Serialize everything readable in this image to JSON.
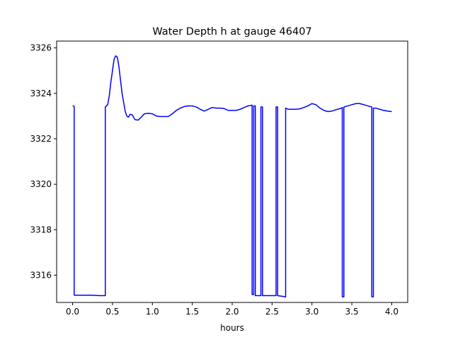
{
  "chart_data": {
    "type": "line",
    "title": "Water Depth h at gauge 46407",
    "xlabel": "hours",
    "ylabel": "",
    "xlim": [
      -0.2,
      4.2
    ],
    "ylim": [
      3314.8,
      3326.3
    ],
    "xticks": [
      0.0,
      0.5,
      1.0,
      1.5,
      2.0,
      2.5,
      3.0,
      3.5,
      4.0
    ],
    "xtick_labels": [
      "0.0",
      "0.5",
      "1.0",
      "1.5",
      "2.0",
      "2.5",
      "3.0",
      "3.5",
      "4.0"
    ],
    "yticks": [
      3316,
      3318,
      3320,
      3322,
      3324,
      3326
    ],
    "ytick_labels": [
      "3316",
      "3318",
      "3320",
      "3322",
      "3324",
      "3326"
    ],
    "grid": false,
    "series": [
      {
        "name": "",
        "color": "#0000ff",
        "x": [
          0.0,
          0.02,
          0.02,
          0.1,
          0.25,
          0.33,
          0.41,
          0.41,
          0.44,
          0.46,
          0.48,
          0.5,
          0.52,
          0.54,
          0.56,
          0.58,
          0.6,
          0.62,
          0.64,
          0.66,
          0.68,
          0.7,
          0.72,
          0.75,
          0.78,
          0.82,
          0.86,
          0.9,
          0.95,
          1.0,
          1.05,
          1.1,
          1.15,
          1.2,
          1.25,
          1.3,
          1.35,
          1.4,
          1.45,
          1.5,
          1.55,
          1.6,
          1.65,
          1.7,
          1.75,
          1.8,
          1.85,
          1.9,
          1.95,
          2.0,
          2.05,
          2.1,
          2.15,
          2.2,
          2.25,
          2.25,
          2.27,
          2.27,
          2.29,
          2.29,
          2.36,
          2.36,
          2.38,
          2.38,
          2.55,
          2.55,
          2.57,
          2.57,
          2.67,
          2.67,
          2.7,
          2.75,
          2.8,
          2.85,
          2.9,
          2.95,
          3.0,
          3.05,
          3.1,
          3.15,
          3.2,
          3.25,
          3.3,
          3.37,
          3.38,
          3.38,
          3.4,
          3.4,
          3.45,
          3.5,
          3.55,
          3.6,
          3.65,
          3.7,
          3.75,
          3.75,
          3.77,
          3.77,
          3.8,
          3.85,
          3.9,
          3.95,
          4.0
        ],
        "y": [
          3323.45,
          3323.43,
          3315.12,
          3315.12,
          3315.12,
          3315.1,
          3315.1,
          3323.4,
          3323.5,
          3323.9,
          3324.5,
          3325.0,
          3325.5,
          3325.65,
          3325.6,
          3325.2,
          3324.6,
          3324.0,
          3323.6,
          3323.2,
          3323.0,
          3322.95,
          3323.08,
          3323.05,
          3322.85,
          3322.82,
          3322.95,
          3323.1,
          3323.12,
          3323.1,
          3323.0,
          3322.98,
          3322.98,
          3322.98,
          3323.1,
          3323.25,
          3323.35,
          3323.42,
          3323.45,
          3323.45,
          3323.4,
          3323.3,
          3323.22,
          3323.3,
          3323.38,
          3323.35,
          3323.35,
          3323.33,
          3323.25,
          3323.25,
          3323.25,
          3323.3,
          3323.38,
          3323.45,
          3323.48,
          3315.15,
          3315.15,
          3323.45,
          3323.45,
          3315.1,
          3315.1,
          3323.4,
          3323.4,
          3315.1,
          3315.1,
          3323.4,
          3323.4,
          3315.1,
          3315.05,
          3323.35,
          3323.3,
          3323.3,
          3323.3,
          3323.32,
          3323.38,
          3323.45,
          3323.55,
          3323.5,
          3323.35,
          3323.25,
          3323.2,
          3323.22,
          3323.28,
          3323.35,
          3323.38,
          3315.05,
          3315.05,
          3323.4,
          3323.45,
          3323.5,
          3323.55,
          3323.55,
          3323.5,
          3323.45,
          3323.4,
          3315.05,
          3315.05,
          3323.35,
          3323.35,
          3323.3,
          3323.25,
          3323.22,
          3323.2
        ]
      }
    ]
  }
}
